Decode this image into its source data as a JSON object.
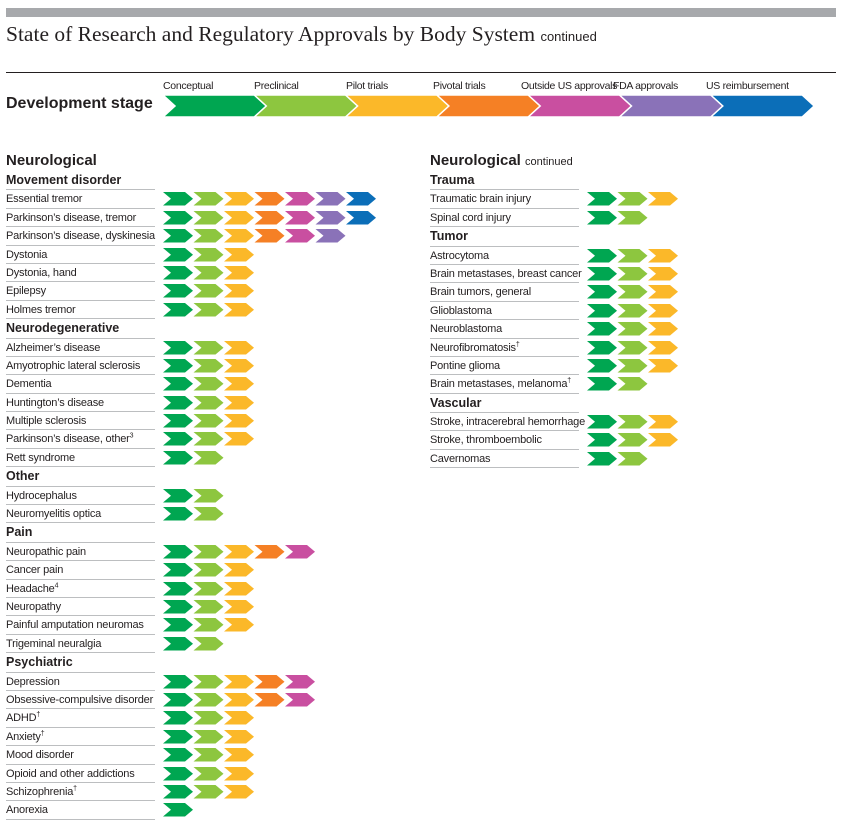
{
  "header": {
    "title": "State of Research and Regulatory Approvals by Body System",
    "title_suffix": "continued"
  },
  "legend": {
    "label": "Development stage",
    "stages": [
      {
        "name": "Conceptual",
        "color": "#00a651"
      },
      {
        "name": "Preclinical",
        "color": "#8dc63f"
      },
      {
        "name": "Pilot trials",
        "color": "#fbb829"
      },
      {
        "name": "Pivotal trials",
        "color": "#f58025"
      },
      {
        "name": "Outside US approvals",
        "color": "#c94fa0"
      },
      {
        "name": "FDA approvals",
        "color": "#8a72b8"
      },
      {
        "name": "US reimbursement",
        "color": "#0b6eb8"
      }
    ]
  },
  "chart_data": {
    "type": "table",
    "title": "State of Research and Regulatory Approvals by Body System continued",
    "value_meaning": "number of development stages reached (1 = Conceptual ... 7 = US reimbursement)",
    "columns": [
      {
        "system": "Neurological",
        "system_suffix": "",
        "groups": [
          {
            "name": "Movement disorder",
            "items": [
              {
                "label": "Essential tremor",
                "note": "",
                "stages": 7
              },
              {
                "label": "Parkinson’s disease, tremor",
                "note": "",
                "stages": 7
              },
              {
                "label": "Parkinson’s disease, dyskinesia",
                "note": "",
                "stages": 6
              },
              {
                "label": "Dystonia",
                "note": "",
                "stages": 3
              },
              {
                "label": "Dystonia, hand",
                "note": "",
                "stages": 3
              },
              {
                "label": "Epilepsy",
                "note": "",
                "stages": 3
              },
              {
                "label": "Holmes tremor",
                "note": "",
                "stages": 3
              }
            ]
          },
          {
            "name": "Neurodegenerative",
            "items": [
              {
                "label": "Alzheimer’s disease",
                "note": "",
                "stages": 3
              },
              {
                "label": "Amyotrophic lateral sclerosis",
                "note": "",
                "stages": 3
              },
              {
                "label": "Dementia",
                "note": "",
                "stages": 3
              },
              {
                "label": "Huntington’s disease",
                "note": "",
                "stages": 3
              },
              {
                "label": "Multiple sclerosis",
                "note": "",
                "stages": 3
              },
              {
                "label": "Parkinson’s disease, other",
                "note": "3",
                "stages": 3
              },
              {
                "label": "Rett syndrome",
                "note": "",
                "stages": 2
              }
            ]
          },
          {
            "name": "Other",
            "items": [
              {
                "label": "Hydrocephalus",
                "note": "",
                "stages": 2
              },
              {
                "label": "Neuromyelitis optica",
                "note": "",
                "stages": 2
              }
            ]
          },
          {
            "name": "Pain",
            "items": [
              {
                "label": "Neuropathic pain",
                "note": "",
                "stages": 5
              },
              {
                "label": "Cancer pain",
                "note": "",
                "stages": 3
              },
              {
                "label": "Headache",
                "note": "4",
                "stages": 3
              },
              {
                "label": "Neuropathy",
                "note": "",
                "stages": 3
              },
              {
                "label": "Painful amputation neuromas",
                "note": "",
                "stages": 3
              },
              {
                "label": "Trigeminal neuralgia",
                "note": "",
                "stages": 2
              }
            ]
          },
          {
            "name": "Psychiatric",
            "items": [
              {
                "label": "Depression",
                "note": "",
                "stages": 5
              },
              {
                "label": "Obsessive-compulsive disorder",
                "note": "",
                "stages": 5
              },
              {
                "label": "ADHD",
                "note": "†",
                "stages": 3
              },
              {
                "label": "Anxiety",
                "note": "†",
                "stages": 3
              },
              {
                "label": "Mood disorder",
                "note": "",
                "stages": 3
              },
              {
                "label": "Opioid and other addictions",
                "note": "",
                "stages": 3
              },
              {
                "label": "Schizophrenia",
                "note": "†",
                "stages": 3
              },
              {
                "label": "Anorexia",
                "note": "",
                "stages": 1
              }
            ]
          }
        ]
      },
      {
        "system": "Neurological",
        "system_suffix": "continued",
        "groups": [
          {
            "name": "Trauma",
            "items": [
              {
                "label": "Traumatic brain injury",
                "note": "",
                "stages": 3
              },
              {
                "label": "Spinal cord injury",
                "note": "",
                "stages": 2
              }
            ]
          },
          {
            "name": "Tumor",
            "items": [
              {
                "label": "Astrocytoma",
                "note": "",
                "stages": 3
              },
              {
                "label": "Brain metastases, breast cancer",
                "note": "",
                "stages": 3
              },
              {
                "label": "Brain tumors, general",
                "note": "",
                "stages": 3
              },
              {
                "label": "Glioblastoma",
                "note": "",
                "stages": 3
              },
              {
                "label": "Neuroblastoma",
                "note": "",
                "stages": 3
              },
              {
                "label": "Neurofibromatosis",
                "note": "†",
                "stages": 3
              },
              {
                "label": "Pontine glioma",
                "note": "",
                "stages": 3
              },
              {
                "label": "Brain metastases, melanoma",
                "note": "†",
                "stages": 2
              }
            ]
          },
          {
            "name": "Vascular",
            "items": [
              {
                "label": "Stroke, intracerebral hemorrhage",
                "note": "",
                "stages": 3
              },
              {
                "label": "Stroke, thromboembolic",
                "note": "",
                "stages": 3
              },
              {
                "label": "Cavernomas",
                "note": "",
                "stages": 2
              }
            ]
          }
        ]
      }
    ]
  }
}
